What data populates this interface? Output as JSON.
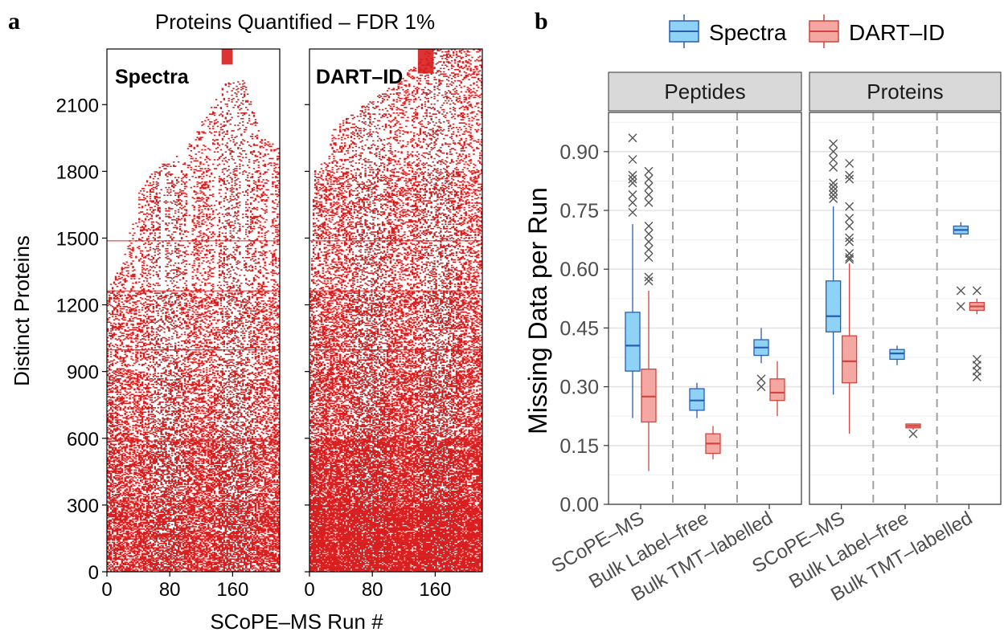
{
  "panel_a": {
    "letter": "a",
    "title": "Proteins Quantified – FDR 1%",
    "ylabel": "Distinct Proteins",
    "xlabel": "SCoPE–MS Run #",
    "facets": [
      "Spectra",
      "DART–ID"
    ],
    "y_ticks": [
      "0",
      "300",
      "600",
      "900",
      "1200",
      "1500",
      "1800",
      "2100"
    ],
    "x_ticks": [
      "0",
      "80",
      "160"
    ],
    "fill_color": "#d81e1e"
  },
  "panel_b": {
    "letter": "b",
    "legend": [
      "Spectra",
      "DART–ID"
    ],
    "facets": [
      "Peptides",
      "Proteins"
    ],
    "ylabel": "Missing Data per Run",
    "y_ticks": [
      "0.00",
      "0.15",
      "0.30",
      "0.45",
      "0.60",
      "0.75",
      "0.90"
    ],
    "categories": [
      "SCoPE–MS",
      "Bulk Label–free",
      "Bulk TMT–labelled"
    ],
    "colors": {
      "spectra_fill": "#8ed3f5",
      "spectra_line": "#2a5db0",
      "dart_fill": "#f4a7a3",
      "dart_line": "#d0463e"
    }
  },
  "chart_data": [
    {
      "type": "heatmap",
      "title": "Proteins Quantified – FDR 1%",
      "xlabel": "SCoPE–MS Run #",
      "ylabel": "Distinct Proteins",
      "facets": [
        "Spectra",
        "DART–ID"
      ],
      "xlim": [
        0,
        220
      ],
      "ylim": [
        0,
        2350
      ],
      "x_ticks": [
        0,
        80,
        160
      ],
      "y_ticks": [
        0,
        300,
        600,
        900,
        1200,
        1500,
        1800,
        2100
      ]
    },
    {
      "type": "box",
      "ylabel": "Missing Data per Run",
      "ylim": [
        0,
        1.0
      ],
      "y_ticks": [
        0.0,
        0.15,
        0.3,
        0.45,
        0.6,
        0.75,
        0.9
      ],
      "categories": [
        "SCoPE–MS",
        "Bulk Label–free",
        "Bulk TMT–labelled"
      ],
      "legend": [
        "Spectra",
        "DART–ID"
      ],
      "legend_position": "top",
      "facets": [
        {
          "name": "Peptides",
          "series": [
            {
              "name": "Spectra",
              "boxes": [
                {
                  "category": "SCoPE–MS",
                  "whisker_low": 0.22,
                  "q1": 0.34,
                  "median": 0.405,
                  "q3": 0.49,
                  "whisker_high": 0.715,
                  "outliers": [
                    0.935,
                    0.88,
                    0.84,
                    0.83,
                    0.82,
                    0.79,
                    0.77,
                    0.745
                  ]
                },
                {
                  "category": "Bulk Label–free",
                  "whisker_low": 0.22,
                  "q1": 0.24,
                  "median": 0.265,
                  "q3": 0.295,
                  "whisker_high": 0.31,
                  "outliers": []
                },
                {
                  "category": "Bulk TMT–labelled",
                  "whisker_low": 0.36,
                  "q1": 0.38,
                  "median": 0.4,
                  "q3": 0.42,
                  "whisker_high": 0.45,
                  "outliers": [
                    0.32,
                    0.3
                  ]
                }
              ]
            },
            {
              "name": "DART–ID",
              "boxes": [
                {
                  "category": "SCoPE–MS",
                  "whisker_low": 0.085,
                  "q1": 0.21,
                  "median": 0.275,
                  "q3": 0.345,
                  "whisker_high": 0.545,
                  "outliers": [
                    0.85,
                    0.83,
                    0.81,
                    0.79,
                    0.77,
                    0.71,
                    0.69,
                    0.67,
                    0.65,
                    0.63,
                    0.58,
                    0.57
                  ]
                },
                {
                  "category": "Bulk Label–free",
                  "whisker_low": 0.115,
                  "q1": 0.13,
                  "median": 0.155,
                  "q3": 0.18,
                  "whisker_high": 0.2,
                  "outliers": []
                },
                {
                  "category": "Bulk TMT–labelled",
                  "whisker_low": 0.225,
                  "q1": 0.265,
                  "median": 0.285,
                  "q3": 0.32,
                  "whisker_high": 0.365,
                  "outliers": []
                }
              ]
            }
          ]
        },
        {
          "name": "Proteins",
          "series": [
            {
              "name": "Spectra",
              "boxes": [
                {
                  "category": "SCoPE–MS",
                  "whisker_low": 0.28,
                  "q1": 0.44,
                  "median": 0.48,
                  "q3": 0.57,
                  "whisker_high": 0.76,
                  "outliers": [
                    0.92,
                    0.9,
                    0.88,
                    0.86,
                    0.82,
                    0.81,
                    0.8,
                    0.79,
                    0.78
                  ]
                },
                {
                  "category": "Bulk Label–free",
                  "whisker_low": 0.355,
                  "q1": 0.37,
                  "median": 0.385,
                  "q3": 0.395,
                  "whisker_high": 0.405,
                  "outliers": []
                },
                {
                  "category": "Bulk TMT–labelled",
                  "whisker_low": 0.68,
                  "q1": 0.69,
                  "median": 0.7,
                  "q3": 0.71,
                  "whisker_high": 0.72,
                  "outliers": [
                    0.545,
                    0.505
                  ]
                }
              ]
            },
            {
              "name": "DART–ID",
              "boxes": [
                {
                  "category": "SCoPE–MS",
                  "whisker_low": 0.18,
                  "q1": 0.31,
                  "median": 0.365,
                  "q3": 0.43,
                  "whisker_high": 0.615,
                  "outliers": [
                    0.87,
                    0.84,
                    0.83,
                    0.76,
                    0.73,
                    0.71,
                    0.68,
                    0.67,
                    0.64,
                    0.63,
                    0.625
                  ]
                },
                {
                  "category": "Bulk Label–free",
                  "whisker_low": 0.19,
                  "q1": 0.195,
                  "median": 0.2,
                  "q3": 0.205,
                  "whisker_high": 0.205,
                  "outliers": [
                    0.18
                  ]
                },
                {
                  "category": "Bulk TMT–labelled",
                  "whisker_low": 0.485,
                  "q1": 0.495,
                  "median": 0.505,
                  "q3": 0.515,
                  "whisker_high": 0.525,
                  "outliers": [
                    0.545,
                    0.37,
                    0.355,
                    0.34,
                    0.325
                  ]
                }
              ]
            }
          ]
        }
      ]
    }
  ]
}
